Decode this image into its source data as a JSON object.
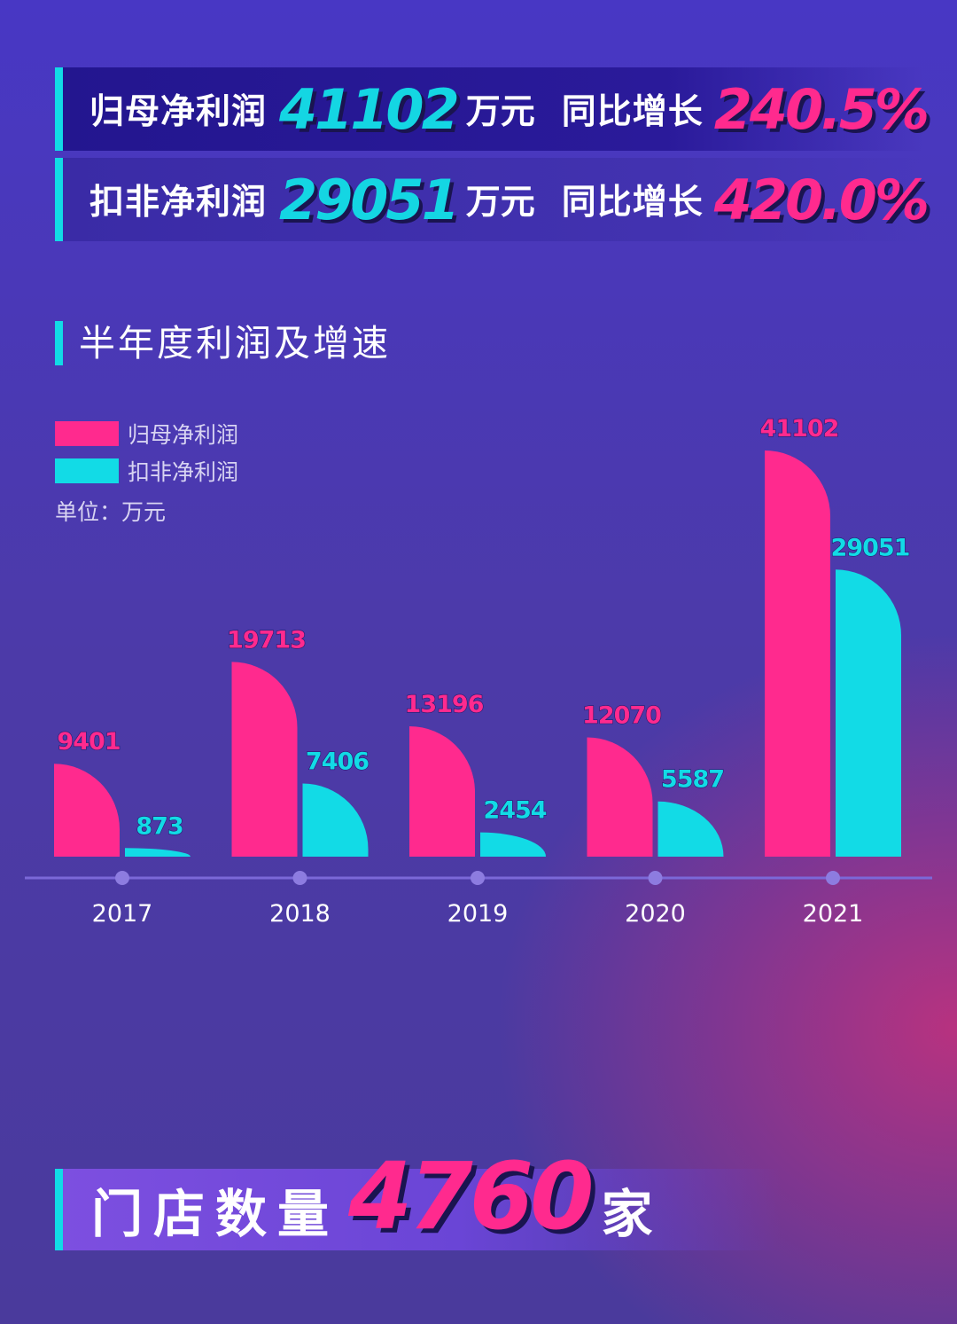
{
  "banners": [
    {
      "label": "归母净利润",
      "value": "41102",
      "unit": "万元",
      "growth_label": "同比增长",
      "growth": "240.5%"
    },
    {
      "label": "扣非净利润",
      "value": "29051",
      "unit": "万元",
      "growth_label": "同比增长",
      "growth": "420.0%"
    }
  ],
  "section_title": "半年度利润及增速",
  "legend": {
    "series1": "归母净利润",
    "series2": "扣非净利润",
    "unit": "单位：万元"
  },
  "colors": {
    "pink": "#ff2a8e",
    "cyan": "#12dbe6",
    "axis": "#7b68d8"
  },
  "chart_data": {
    "type": "bar",
    "title": "半年度利润及增速",
    "categories": [
      "2017",
      "2018",
      "2019",
      "2020",
      "2021"
    ],
    "series": [
      {
        "name": "归母净利润",
        "values": [
          9401,
          19713,
          13196,
          12070,
          41102
        ]
      },
      {
        "name": "扣非净利润",
        "values": [
          873,
          7406,
          2454,
          5587,
          29051
        ]
      }
    ],
    "ylim": [
      0,
      41102
    ],
    "unit": "万元",
    "xlabel": "",
    "ylabel": "",
    "grid": false
  },
  "stores": {
    "label": "门店数量",
    "value": "4760",
    "unit": "家"
  }
}
